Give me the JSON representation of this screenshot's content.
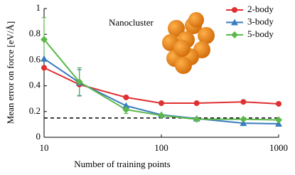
{
  "chart_data": {
    "type": "line",
    "x": [
      10,
      20,
      50,
      100,
      200,
      500,
      1000
    ],
    "xscale": "log",
    "xlim": [
      10,
      1000
    ],
    "xticks": [
      10,
      100,
      1000
    ],
    "ylim": [
      0,
      1
    ],
    "yticks": [
      0,
      0.2,
      0.4,
      0.6,
      0.8,
      1
    ],
    "xlabel": "Number of training points",
    "ylabel": "Mean error on force [eV/Å]",
    "annotation": "Nanocluster",
    "hline": 0.15,
    "legend": "upper right",
    "series": [
      {
        "name": "2-body",
        "color": "#e03030",
        "marker": "circle",
        "values": [
          0.54,
          0.41,
          0.31,
          0.265,
          0.265,
          0.275,
          0.26
        ]
      },
      {
        "name": "3-body",
        "color": "#3a7cc0",
        "marker": "triangle",
        "values": [
          0.61,
          0.425,
          0.245,
          0.175,
          0.145,
          0.11,
          0.105
        ],
        "errors": [
          null,
          0.1,
          null,
          null,
          null,
          null,
          null
        ]
      },
      {
        "name": "5-body",
        "color": "#5bb84a",
        "marker": "diamond",
        "values": [
          0.76,
          0.43,
          0.215,
          0.17,
          0.14,
          0.14,
          0.135
        ],
        "errors": [
          0.17,
          0.11,
          0.03,
          null,
          null,
          null,
          null
        ]
      }
    ]
  }
}
